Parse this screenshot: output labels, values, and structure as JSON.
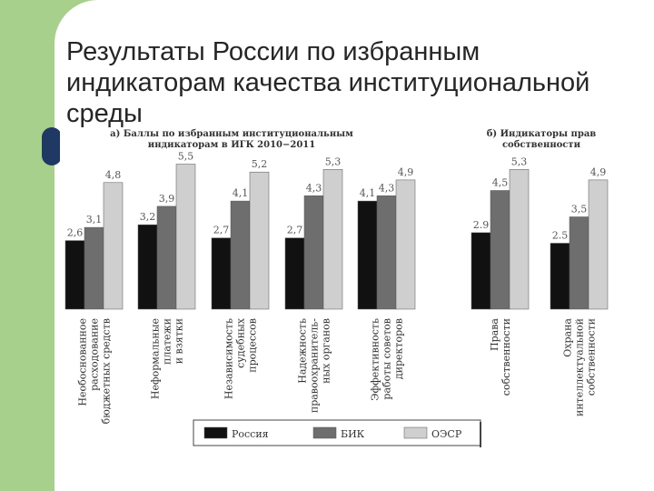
{
  "slide": {
    "title": "Результаты России по избранным индикаторам качества институциональной среды"
  },
  "chart_data": [
    {
      "type": "bar",
      "title": "а) Баллы по избранным институциональным индикаторам в ИГК 2010−2011",
      "categories": [
        [
          "Необоснованное",
          "расходование",
          "бюджетных средств"
        ],
        [
          "Неформальные",
          "платежи",
          "и взятки"
        ],
        [
          "Независимость",
          "судебных",
          "процессов"
        ],
        [
          "Надежность",
          "правоохранитель-",
          "ных органов"
        ],
        [
          "Эффективность",
          "работы советов",
          "директоров"
        ]
      ],
      "series": [
        {
          "name": "Россия",
          "color": "#111111",
          "values": [
            2.6,
            3.2,
            2.7,
            2.7,
            4.1
          ]
        },
        {
          "name": "БИК",
          "color": "#6e6e6e",
          "values": [
            3.1,
            3.9,
            4.1,
            4.3,
            4.3
          ]
        },
        {
          "name": "ОЭСР",
          "color": "#cfcfcf",
          "values": [
            4.8,
            5.5,
            5.2,
            5.3,
            4.9
          ]
        }
      ],
      "value_labels": [
        [
          "2,6",
          "3,2",
          "2,7",
          "2,7",
          "4,1"
        ],
        [
          "3,1",
          "3,9",
          "4,1",
          "4,3",
          "4,3"
        ],
        [
          "4,8",
          "5,5",
          "5,2",
          "5,3",
          "4,9"
        ]
      ],
      "legend_position": "bottom"
    },
    {
      "type": "bar",
      "title": "б) Индикаторы прав собственности",
      "categories": [
        [
          "Права",
          "собственности"
        ],
        [
          "Охрана",
          "интеллектуальной",
          "собственности"
        ]
      ],
      "series": [
        {
          "name": "Россия",
          "color": "#111111",
          "values": [
            2.9,
            2.5
          ]
        },
        {
          "name": "БИК",
          "color": "#6e6e6e",
          "values": [
            4.5,
            3.5
          ]
        },
        {
          "name": "ОЭСР",
          "color": "#cfcfcf",
          "values": [
            5.3,
            4.9
          ]
        }
      ],
      "value_labels": [
        [
          "2.9",
          "2.5"
        ],
        [
          "4,5",
          "3,5"
        ],
        [
          "5,3",
          "4,9"
        ]
      ],
      "legend_position": "bottom"
    }
  ],
  "legend": {
    "items": [
      {
        "label": "Россия",
        "color": "#111111"
      },
      {
        "label": "БИК",
        "color": "#6e6e6e"
      },
      {
        "label": "ОЭСР",
        "color": "#cfcfcf"
      }
    ]
  }
}
